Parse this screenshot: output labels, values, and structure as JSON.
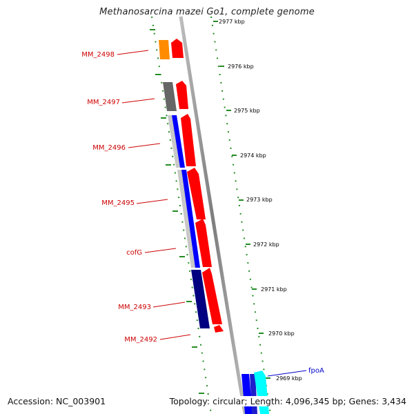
{
  "title": "Methanosarcina mazei Go1, complete genome",
  "footer": {
    "accession": "Accession: NC_003901",
    "topology": "Topology: circular; Length: 4,096,345 bp; Genes: 3,434"
  },
  "ticks": [
    "2977 kbp",
    "2976 kbp",
    "2975 kbp",
    "2974 kbp",
    "2973 kbp",
    "2972 kbp",
    "2971 kbp",
    "2970 kbp",
    "2969 kbp"
  ],
  "gene_labels": [
    "MM_2498",
    "MM_2497",
    "MM_2496",
    "MM_2495",
    "cofG",
    "MM_2493",
    "MM_2492",
    "fpoA"
  ],
  "colors": {
    "gene_forward": "#ff0000",
    "label_red": "#cc0000",
    "label_blue": "#0000cc",
    "backbone": "#8a8a8a",
    "ruler": "#228b22",
    "orange": "#ff8c00",
    "dark_gray": "#666666",
    "blue": "#0000ff",
    "navy": "#000080",
    "cyan": "#00ffff",
    "light_gray": "#c0c0c0"
  }
}
